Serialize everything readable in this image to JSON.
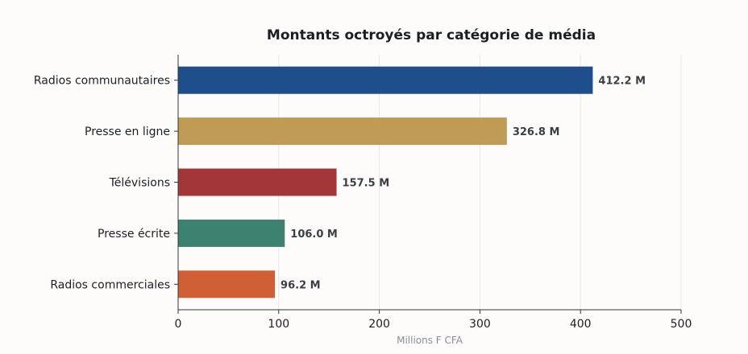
{
  "chart_data": {
    "type": "bar",
    "orientation": "horizontal",
    "title": "Montants octroyés par catégorie de média",
    "xlabel": "Millions F CFA",
    "ylabel": "",
    "xlim": [
      0,
      500
    ],
    "xticks": [
      "0",
      "100",
      "200",
      "300",
      "400",
      "500"
    ],
    "grid": "vertical",
    "categories": [
      "Radios communautaires",
      "Presse en ligne",
      "Télévisions",
      "Presse écrite",
      "Radios commerciales"
    ],
    "values": [
      412.2,
      326.8,
      157.5,
      106.0,
      96.2
    ],
    "value_labels": [
      "412.2 M",
      "326.8 M",
      "157.5 M",
      "106.0 M",
      "96.2 M"
    ],
    "colors": [
      "#1f4e8c",
      "#bf9b55",
      "#a33638",
      "#3d8270",
      "#d05f33"
    ]
  }
}
